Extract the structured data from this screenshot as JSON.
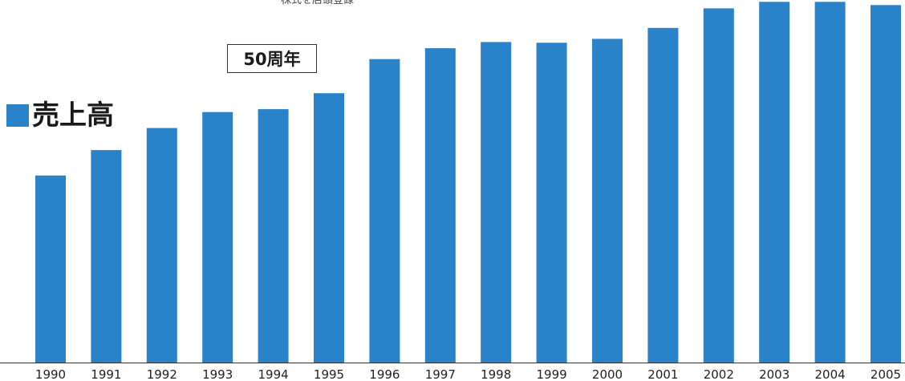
{
  "header": {
    "note": "株式を店頭登録"
  },
  "legend": {
    "label": "売上高",
    "color": "#2a82c9"
  },
  "annotation": {
    "label": "50周年"
  },
  "chart_data": {
    "type": "bar",
    "categories": [
      "1990",
      "1991",
      "1992",
      "1993",
      "1994",
      "1995",
      "1996",
      "1997",
      "1998",
      "1999",
      "2000",
      "2001",
      "2002",
      "2003",
      "2004",
      "2005"
    ],
    "series": [
      {
        "values": [
          51.6,
          58.6,
          64.7,
          69.1,
          69.9,
          74.3,
          83.7,
          86.7,
          88.4,
          88.2,
          89.3,
          92.3,
          97.7,
          99.5,
          99.5,
          98.6
        ]
      }
    ],
    "ylim": [
      0,
      100
    ],
    "bar_color": "#2a82c9",
    "grid": false,
    "legend_position": "left",
    "xlabel": "",
    "ylabel": ""
  }
}
